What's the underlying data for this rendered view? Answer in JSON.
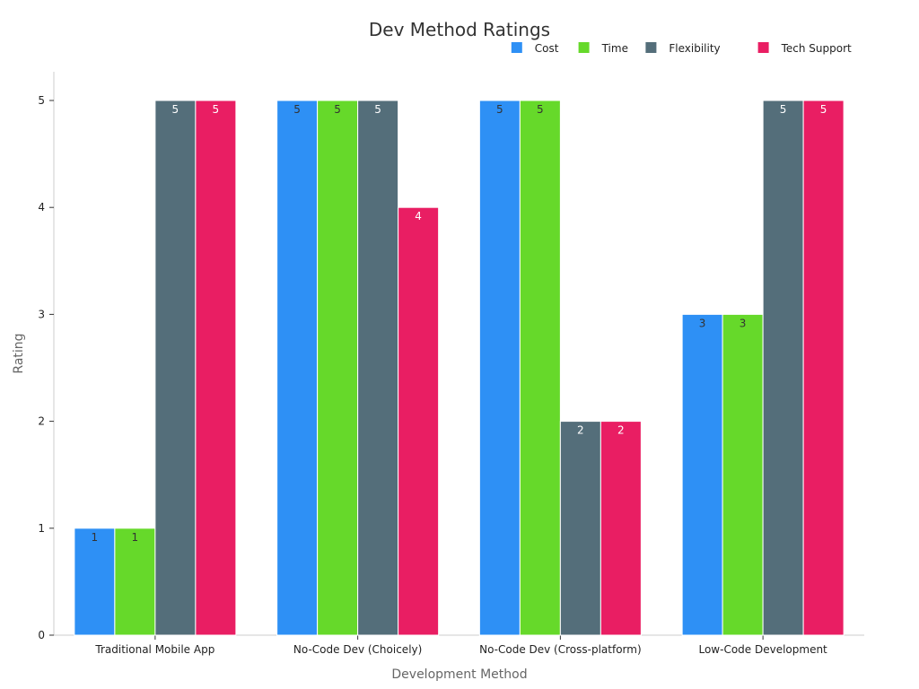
{
  "chart_data": {
    "type": "bar",
    "title": "Dev Method Ratings",
    "xlabel": "Development Method",
    "ylabel": "Rating",
    "ylim": [
      0,
      5
    ],
    "yticks": [
      "0",
      "1",
      "2",
      "3",
      "4",
      "5"
    ],
    "categories": [
      "Traditional Mobile App",
      "No-Code Dev (Choicely)",
      "No-Code Dev (Cross-platform)",
      "Low-Code Development"
    ],
    "series": [
      {
        "name": "Cost",
        "color": "#2E90F5",
        "label_color": "#333333",
        "values": [
          1,
          5,
          5,
          3
        ]
      },
      {
        "name": "Time",
        "color": "#66D92A",
        "label_color": "#333333",
        "values": [
          1,
          5,
          5,
          3
        ]
      },
      {
        "name": "Flexibility",
        "color": "#546E7A",
        "label_color": "#ffffff",
        "values": [
          5,
          5,
          2,
          5
        ]
      },
      {
        "name": "Tech Support",
        "color": "#E91E63",
        "label_color": "#ffffff",
        "values": [
          5,
          4,
          2,
          5
        ]
      }
    ],
    "legend_position": "top-right",
    "grid": false
  }
}
